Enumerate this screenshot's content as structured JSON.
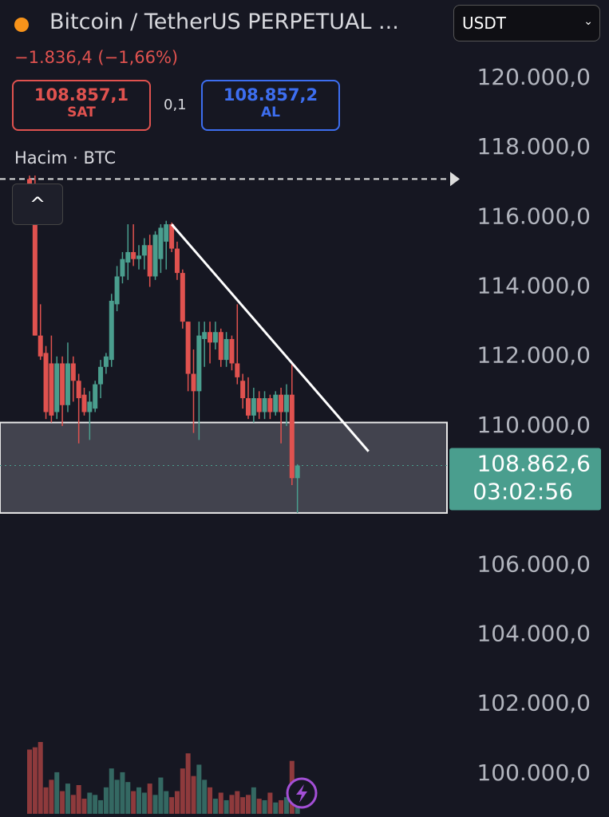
{
  "header": {
    "title": "Bitcoin / TetherUS PERPETUAL ...",
    "change": "−1.836,4 (−1,66%)",
    "sell_price": "108.857,1",
    "sell_label": "SAT",
    "spread": "0,1",
    "buy_price": "108.857,2",
    "buy_label": "AL",
    "volume_label": "Hacim · BTC",
    "currency": "USDT"
  },
  "chart_data": {
    "type": "candlestick",
    "up_color": "#4a9e8e",
    "down_color": "#e0524f",
    "ylim": [
      98758,
      122248
    ],
    "yticks": [
      {
        "value": 100000,
        "label": "100.000,0"
      },
      {
        "value": 102000,
        "label": "102.000,0"
      },
      {
        "value": 104000,
        "label": "104.000,0"
      },
      {
        "value": 106000,
        "label": "106.000,0"
      },
      {
        "value": 110000,
        "label": "110.000,0"
      },
      {
        "value": 112000,
        "label": "112.000,0"
      },
      {
        "value": 114000,
        "label": "114.000,0"
      },
      {
        "value": 116000,
        "label": "116.000,0"
      },
      {
        "value": 118000,
        "label": "118.000,0"
      },
      {
        "value": 120000,
        "label": "120.000,0"
      }
    ],
    "open": [
      117100,
      116900,
      112600,
      112100,
      111800,
      110400,
      111800,
      110600,
      111800,
      111300,
      110900,
      110400,
      110500,
      111200,
      111700,
      111900,
      113500,
      114300,
      114700,
      115000,
      114800,
      114900,
      115200,
      114300,
      114800,
      115300,
      115800,
      115100,
      114400,
      113000,
      111500,
      111000,
      112500,
      112700,
      112400,
      112700,
      111900,
      112500,
      111800,
      111300,
      110800,
      110300,
      110800,
      110400,
      110800,
      110400,
      110900,
      110400,
      110900,
      108500
    ],
    "high": [
      117200,
      117200,
      113500,
      112300,
      112600,
      112000,
      112000,
      112400,
      112000,
      111500,
      111100,
      111000,
      111300,
      111900,
      112100,
      113800,
      114600,
      115000,
      115800,
      115800,
      115200,
      115400,
      115500,
      115600,
      115800,
      115900,
      115850,
      115300,
      114500,
      113000,
      112200,
      113000,
      113000,
      113000,
      113000,
      112800,
      112700,
      112600,
      113500,
      111500,
      111400,
      111100,
      111000,
      111000,
      110900,
      111000,
      111100,
      111200,
      111800,
      108900
    ],
    "low": [
      116800,
      112600,
      111900,
      110200,
      110100,
      110200,
      110000,
      110400,
      110700,
      109500,
      110300,
      109600,
      110400,
      110800,
      111500,
      111700,
      113300,
      114100,
      114200,
      114600,
      114500,
      114500,
      114000,
      114200,
      114400,
      114500,
      115000,
      114200,
      112800,
      111000,
      109800,
      109600,
      111700,
      111800,
      112200,
      111700,
      111700,
      111600,
      111200,
      110500,
      110200,
      110100,
      110200,
      110200,
      110200,
      110300,
      109500,
      110000,
      108300,
      107500
    ],
    "close": [
      116900,
      112600,
      112000,
      110400,
      110300,
      111800,
      110600,
      111800,
      111300,
      110800,
      110400,
      110700,
      111200,
      111700,
      112000,
      113600,
      114300,
      114800,
      115000,
      114800,
      114900,
      115200,
      114300,
      115500,
      115700,
      115800,
      115100,
      114400,
      113000,
      111500,
      111000,
      112600,
      112700,
      112400,
      112700,
      111900,
      112500,
      111800,
      111400,
      110800,
      110300,
      110800,
      110400,
      110800,
      110400,
      110900,
      110400,
      110900,
      108500,
      108863
    ],
    "volume": [
      85,
      88,
      95,
      35,
      45,
      55,
      30,
      40,
      25,
      38,
      20,
      28,
      25,
      18,
      35,
      60,
      45,
      55,
      42,
      30,
      35,
      28,
      40,
      25,
      48,
      30,
      22,
      30,
      60,
      80,
      50,
      65,
      45,
      35,
      20,
      28,
      18,
      25,
      30,
      22,
      25,
      35,
      20,
      18,
      28,
      15,
      18,
      22,
      70,
      10
    ],
    "range_box": [
      107500,
      110100
    ],
    "resistance_line": 117100,
    "trendline": {
      "start": [
        26,
        115800
      ],
      "end": [
        62,
        109270
      ]
    },
    "last_price": {
      "value": 108862.6,
      "label": "108.862,6"
    },
    "countdown": "03:02:56"
  }
}
